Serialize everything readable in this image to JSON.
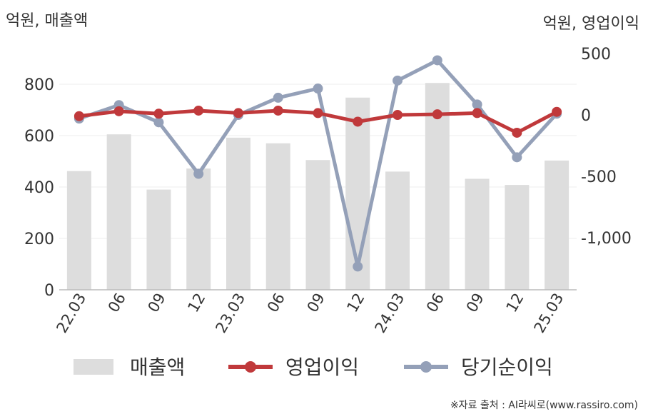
{
  "chart_data": {
    "type": "bar+line",
    "left_axis_label": "억원, 매출액",
    "right_axis_label": "억원, 영업이익",
    "categories": [
      "22.03",
      "06",
      "09",
      "12",
      "23.03",
      "06",
      "09",
      "12",
      "24.03",
      "06",
      "09",
      "12",
      "25.03"
    ],
    "left_ticks": [
      "0",
      "200",
      "400",
      "600",
      "800"
    ],
    "right_ticks": [
      "500",
      "0",
      "-500",
      "-1,000"
    ],
    "left_ylim": [
      0,
      900
    ],
    "right_ylim": [
      -1400,
      500
    ],
    "grid": true,
    "legend_placement": "bottom",
    "series": [
      {
        "name": "매출액",
        "type": "bar",
        "axis": "left",
        "color": "#dddddd",
        "values": [
          462,
          605,
          390,
          472,
          592,
          570,
          505,
          748,
          460,
          805,
          432,
          408,
          503
        ]
      },
      {
        "name": "영업이익",
        "type": "line",
        "axis": "right",
        "color": "#c0393b",
        "values": [
          -10,
          30,
          10,
          35,
          15,
          35,
          15,
          -55,
          0,
          5,
          15,
          -145,
          25
        ]
      },
      {
        "name": "당기순이익",
        "type": "line",
        "axis": "right",
        "color": "#94a0b8",
        "values": [
          -30,
          80,
          -60,
          -480,
          0,
          140,
          215,
          -1235,
          280,
          445,
          85,
          -345,
          10
        ]
      }
    ]
  },
  "legend": [
    {
      "label": "매출액"
    },
    {
      "label": "영업이익"
    },
    {
      "label": "당기순이익"
    }
  ],
  "source": "※자료 출처 : AI라씨로(www.rassiro.com)"
}
